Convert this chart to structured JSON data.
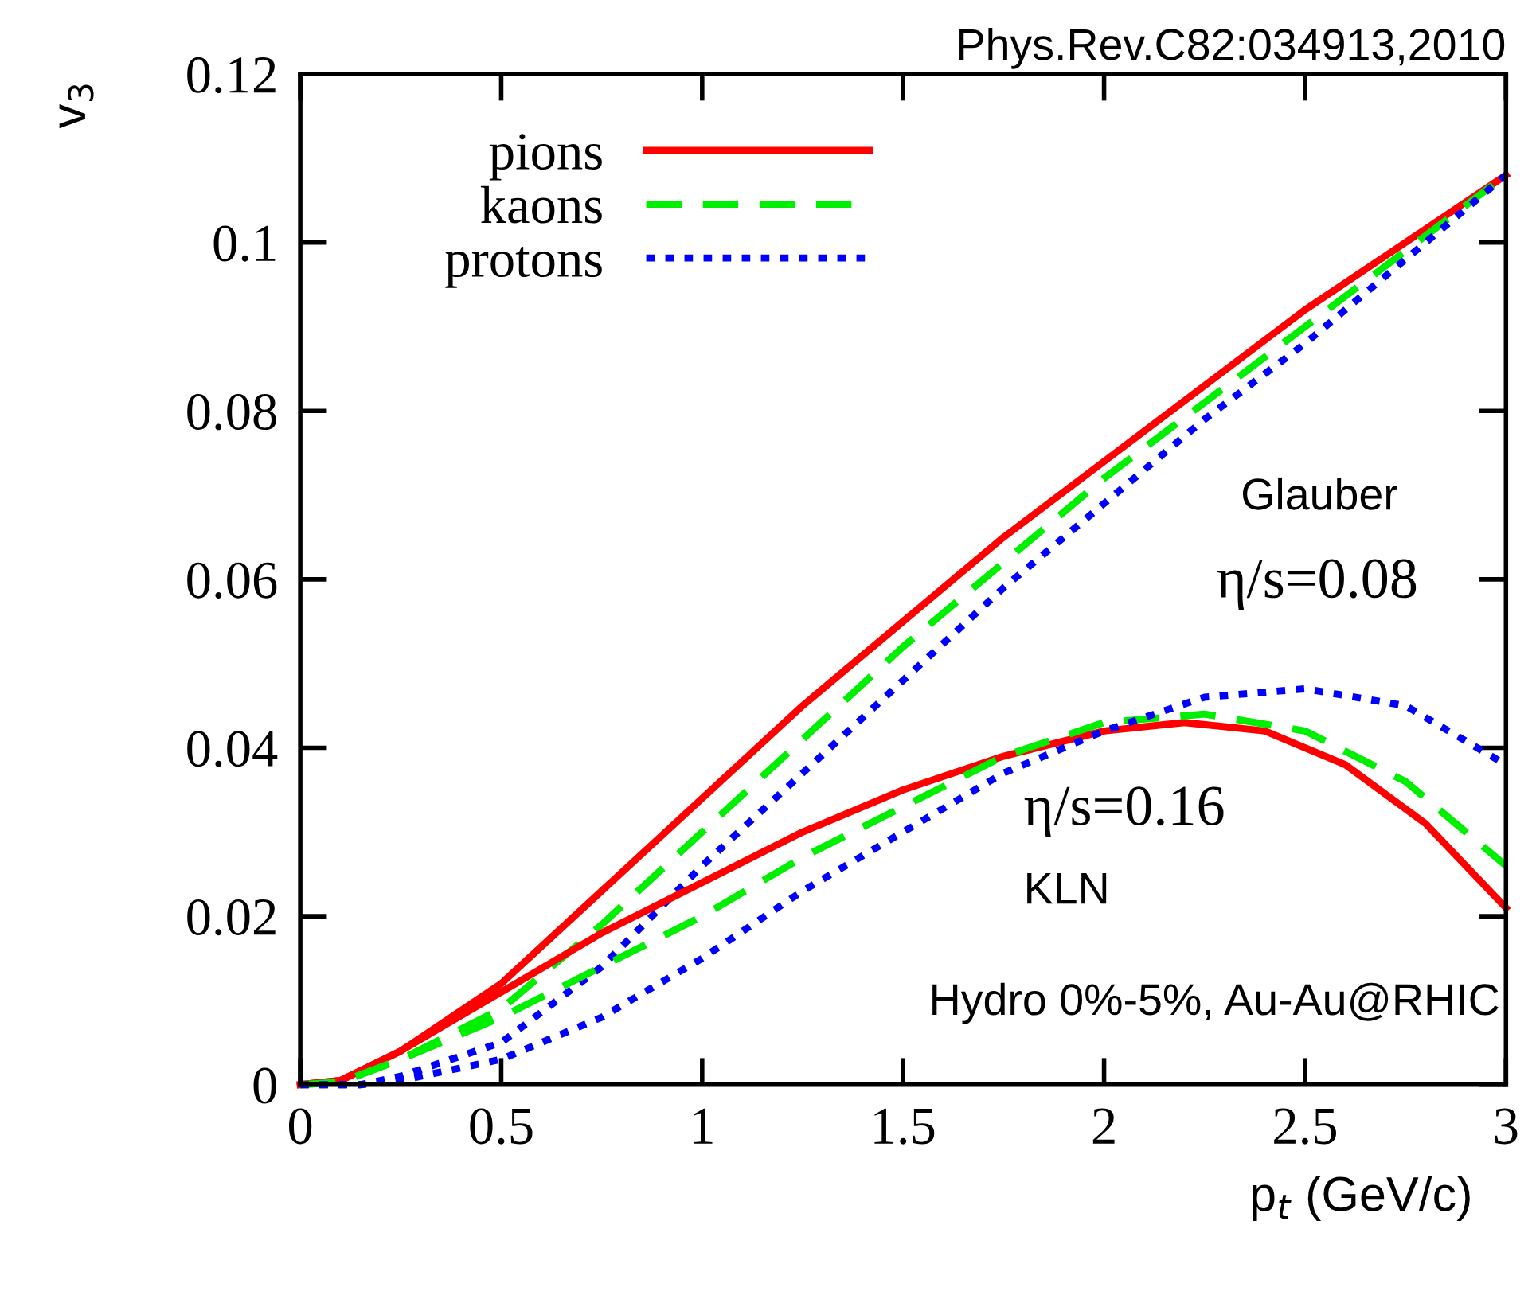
{
  "chart_data": {
    "type": "line",
    "xlabel": "p$_{t}$ (GeV/c)",
    "ylabel": "v$_{3}$",
    "xlim": [
      0,
      3
    ],
    "ylim": [
      0,
      0.12
    ],
    "xticks": [
      0,
      0.5,
      1,
      1.5,
      2,
      2.5,
      3
    ],
    "yticks": [
      0,
      0.02,
      0.04,
      0.06,
      0.08,
      0.1,
      0.12
    ],
    "grid": false,
    "legend": "top left",
    "marker": "none",
    "annotations": [
      "Phys.Rev.C82:034913,2010",
      "Glauber",
      "η/s=0.08",
      "η/s=0.16",
      "KLN",
      "Hydro 0%-5%, Au-Au@RHIC"
    ],
    "series": [
      {
        "name": "pions",
        "color": "#ff0000",
        "line_style": "solid",
        "x": [
          0,
          0.1,
          0.25,
          0.5,
          0.75,
          1,
          1.25,
          1.5,
          1.75,
          2,
          2.25,
          2.5,
          2.75,
          3
        ],
        "values": [
          0,
          0.0005,
          0.004,
          0.012,
          0.023,
          0.034,
          0.045,
          0.055,
          0.065,
          0.074,
          0.083,
          0.092,
          0.1,
          0.108
        ]
      },
      {
        "name": "kaons",
        "color": "#00ee00",
        "line_style": "dashed",
        "x": [
          0,
          0.1,
          0.25,
          0.5,
          0.75,
          1,
          1.25,
          1.5,
          1.75,
          2,
          2.25,
          2.5,
          2.75,
          3
        ],
        "values": [
          0,
          0.0003,
          0.003,
          0.009,
          0.019,
          0.03,
          0.041,
          0.052,
          0.062,
          0.072,
          0.081,
          0.09,
          0.099,
          0.108
        ]
      },
      {
        "name": "protons",
        "color": "#0000ff",
        "line_style": "dotted",
        "x": [
          0,
          0.15,
          0.25,
          0.5,
          0.75,
          1,
          1.25,
          1.5,
          1.75,
          2,
          2.25,
          2.5,
          2.75,
          3
        ],
        "values": [
          0,
          0,
          0.001,
          0.005,
          0.014,
          0.026,
          0.037,
          0.048,
          0.059,
          0.069,
          0.079,
          0.088,
          0.098,
          0.108
        ]
      },
      {
        "color": "#ff0000",
        "line_style": "solid",
        "x": [
          0,
          0.1,
          0.25,
          0.5,
          0.75,
          1,
          1.25,
          1.5,
          1.75,
          2,
          2.2,
          2.4,
          2.6,
          2.8,
          3
        ],
        "values": [
          0,
          0.0005,
          0.004,
          0.011,
          0.018,
          0.024,
          0.03,
          0.035,
          0.039,
          0.042,
          0.043,
          0.042,
          0.038,
          0.031,
          0.021
        ]
      },
      {
        "color": "#00ee00",
        "line_style": "dashed",
        "x": [
          0,
          0.1,
          0.25,
          0.5,
          0.75,
          1,
          1.25,
          1.5,
          1.75,
          2,
          2.25,
          2.5,
          2.75,
          3
        ],
        "values": [
          0,
          0.0003,
          0.003,
          0.008,
          0.014,
          0.02,
          0.027,
          0.033,
          0.039,
          0.043,
          0.044,
          0.042,
          0.036,
          0.026
        ]
      },
      {
        "color": "#0000ff",
        "line_style": "dotted",
        "x": [
          0,
          0.15,
          0.25,
          0.5,
          0.75,
          1,
          1.25,
          1.5,
          1.75,
          2,
          2.25,
          2.5,
          2.75,
          3
        ],
        "values": [
          0,
          0,
          0.0005,
          0.003,
          0.008,
          0.015,
          0.023,
          0.03,
          0.037,
          0.042,
          0.046,
          0.047,
          0.045,
          0.038
        ]
      }
    ]
  }
}
